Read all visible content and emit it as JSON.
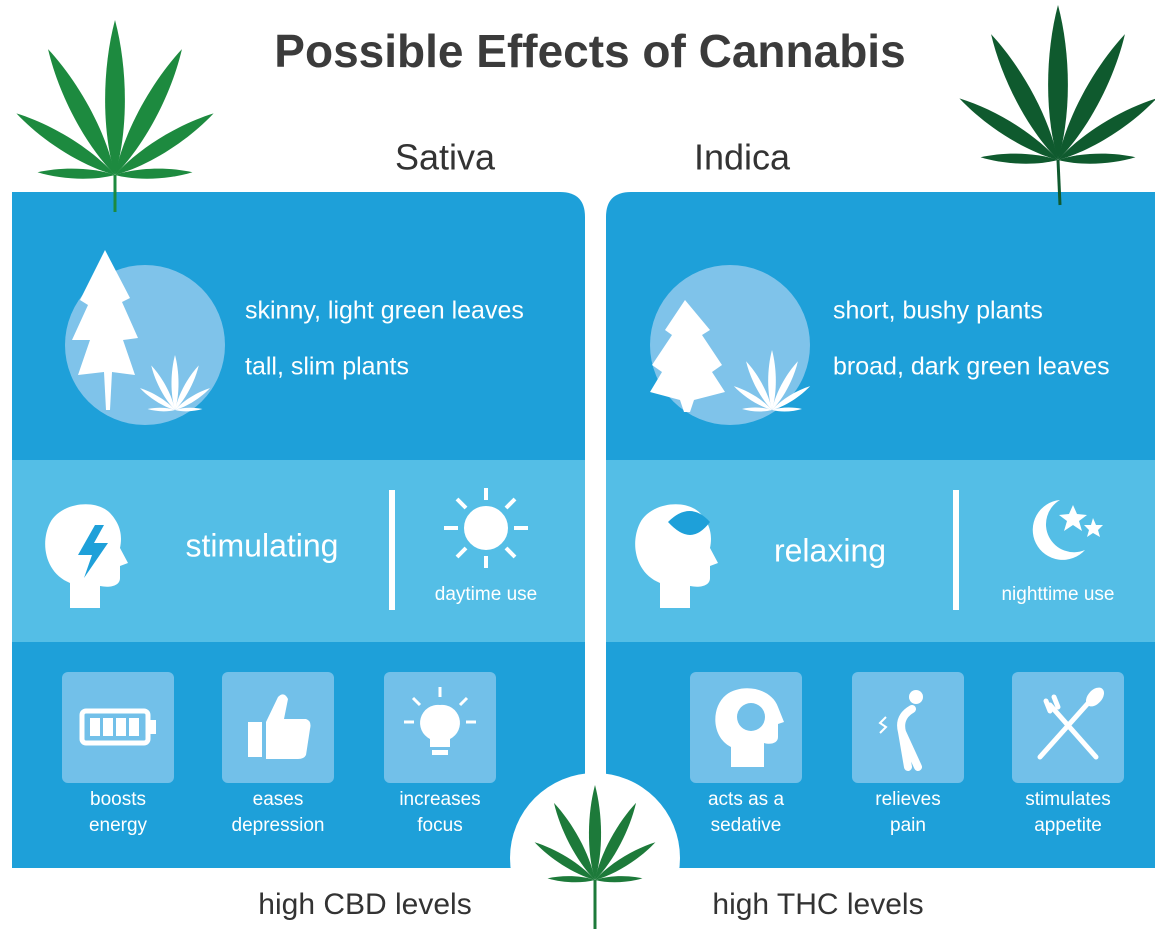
{
  "title": "Possible Effects of Cannabis",
  "columns": [
    {
      "name": "Sativa",
      "traits": [
        "skinny, light green leaves",
        "tall, slim plants"
      ],
      "effect": "stimulating",
      "use": "daytime use",
      "benefits": [
        [
          "boosts",
          "energy"
        ],
        [
          "eases",
          "depression"
        ],
        [
          "increases",
          "focus"
        ]
      ],
      "footer": "high CBD levels"
    },
    {
      "name": "Indica",
      "traits": [
        "short, bushy plants",
        "broad, dark green leaves"
      ],
      "effect": "relaxing",
      "use": "nighttime use",
      "benefits": [
        [
          "acts as a",
          "sedative"
        ],
        [
          "relieves",
          "pain"
        ],
        [
          "stimulates",
          "appetite"
        ]
      ],
      "footer": "high THC levels"
    }
  ]
}
